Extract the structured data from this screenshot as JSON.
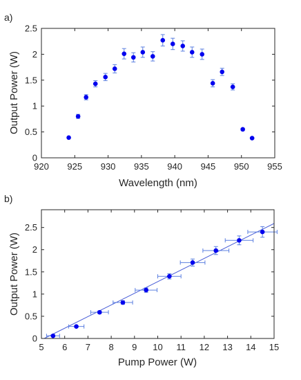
{
  "chart_data": [
    {
      "type": "scatter",
      "panel_label": "a)",
      "xlabel": "Wavelength (nm)",
      "ylabel": "Output Power (W)",
      "xlim": [
        920,
        955
      ],
      "ylim": [
        0,
        2.5
      ],
      "xticks": [
        920,
        925,
        930,
        935,
        940,
        945,
        950,
        955
      ],
      "xtick_labels": [
        "920",
        "925",
        "930",
        "935",
        "940",
        "945",
        "950",
        "955"
      ],
      "yticks": [
        0,
        0.5,
        1,
        1.5,
        2,
        2.5
      ],
      "ytick_labels": [
        "0",
        "0.5",
        "1",
        "1.5",
        "2",
        "2.5"
      ],
      "grid": false,
      "box": true,
      "marker_color": "#0000ee",
      "errorbar_color": "#5b7fe0",
      "series": [
        {
          "x": [
            924.1,
            925.5,
            926.7,
            928.1,
            929.6,
            931.0,
            932.4,
            933.8,
            935.2,
            936.7,
            938.2,
            939.7,
            941.2,
            942.6,
            944.1,
            945.7,
            947.1,
            948.7,
            950.2,
            951.6
          ],
          "y": [
            0.39,
            0.8,
            1.17,
            1.43,
            1.56,
            1.72,
            2.01,
            1.94,
            2.04,
            1.96,
            2.27,
            2.2,
            2.16,
            2.04,
            2.0,
            1.44,
            1.66,
            1.37,
            0.55,
            0.38
          ],
          "yerr": [
            0.0,
            0.04,
            0.05,
            0.06,
            0.07,
            0.08,
            0.1,
            0.09,
            0.1,
            0.09,
            0.11,
            0.11,
            0.1,
            0.1,
            0.1,
            0.07,
            0.07,
            0.06,
            0.02,
            0.0
          ]
        }
      ]
    },
    {
      "type": "scatter",
      "panel_label": "b)",
      "xlabel": "Pump Power (W)",
      "ylabel": "Output Power (W)",
      "xlim": [
        5,
        15
      ],
      "ylim": [
        0,
        2.9
      ],
      "xticks": [
        5,
        6,
        7,
        8,
        9,
        10,
        11,
        12,
        13,
        14,
        15
      ],
      "xtick_labels": [
        "5",
        "6",
        "7",
        "8",
        "9",
        "10",
        "11",
        "12",
        "13",
        "14",
        "15"
      ],
      "yticks": [
        0,
        0.5,
        1,
        1.5,
        2,
        2.5
      ],
      "ytick_labels": [
        "0",
        "0.5",
        "1",
        "1.5",
        "2",
        "2.5"
      ],
      "grid": false,
      "box": true,
      "marker_color": "#0000ee",
      "errorbar_color": "#5b7fe0",
      "fit_color": "#4a5fd8",
      "series": [
        {
          "x": [
            5.5,
            6.5,
            7.5,
            8.5,
            9.5,
            10.5,
            11.5,
            12.5,
            13.5,
            14.5
          ],
          "y": [
            0.06,
            0.27,
            0.59,
            0.81,
            1.09,
            1.4,
            1.71,
            1.98,
            2.21,
            2.4
          ],
          "xerr": [
            0.28,
            0.33,
            0.38,
            0.42,
            0.47,
            0.5,
            0.53,
            0.56,
            0.6,
            0.63
          ],
          "yerr": [
            0.02,
            0.02,
            0.03,
            0.04,
            0.05,
            0.06,
            0.08,
            0.09,
            0.1,
            0.12
          ]
        }
      ],
      "fit": {
        "x": [
          5.12,
          15
        ],
        "y": [
          0,
          2.59
        ]
      }
    }
  ]
}
